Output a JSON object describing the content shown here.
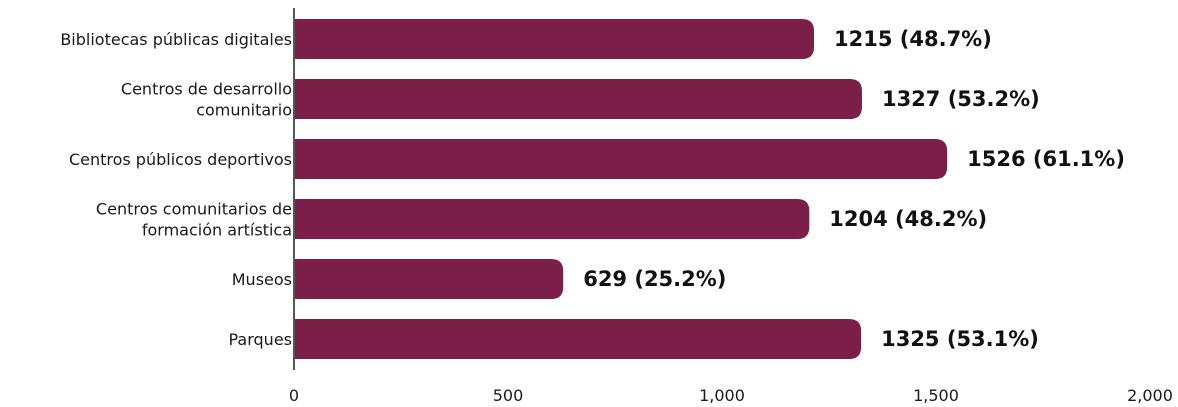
{
  "chart_data": {
    "type": "bar",
    "orientation": "horizontal",
    "categories": [
      [
        "Bibliotecas públicas digitales"
      ],
      [
        "Centros de desarrollo",
        "comunitario"
      ],
      [
        "Centros públicos deportivos"
      ],
      [
        "Centros comunitarios de",
        "formación artística"
      ],
      [
        "Museos"
      ],
      [
        "Parques"
      ]
    ],
    "values": [
      1215,
      1327,
      1526,
      1204,
      629,
      1325
    ],
    "data_labels": [
      "1215 (48.7%)",
      "1327 (53.2%)",
      "1526 (61.1%)",
      "1204 (48.2%)",
      "629 (25.2%)",
      "1325 (53.1%)"
    ],
    "x_ticks": [
      0,
      500,
      1000,
      1500,
      2000
    ],
    "x_tick_labels": [
      "0",
      "500",
      "1,000",
      "1,500",
      "2,000"
    ],
    "xlim": [
      0,
      2000
    ],
    "title": "",
    "xlabel": "",
    "ylabel": "",
    "grid": false,
    "legend": "none",
    "colors": {
      "bar": "#7b1e48",
      "axis": "#555555",
      "text": "#1a1a1a"
    }
  }
}
